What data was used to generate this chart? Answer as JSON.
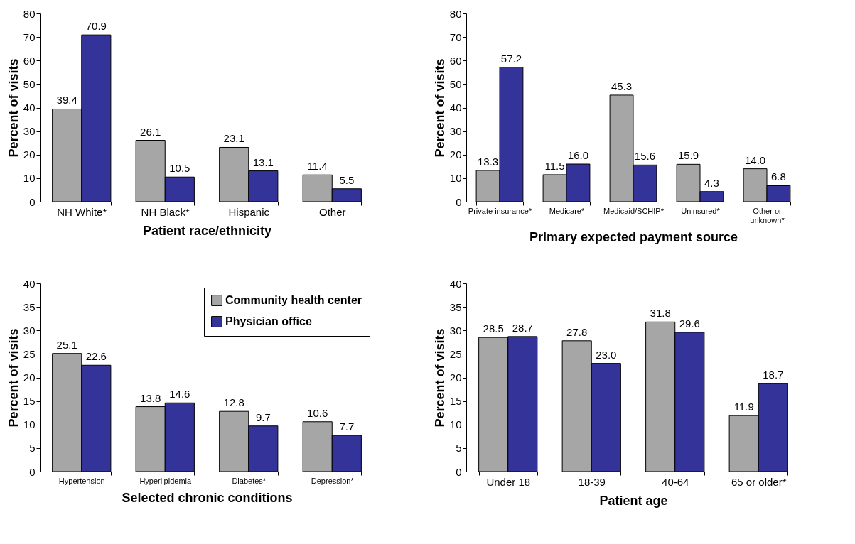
{
  "chart_data": [
    {
      "type": "bar",
      "xlabel": "Patient race/ethnicity",
      "ylabel": "Percent of visits",
      "categories": [
        "NH White*",
        "NH Black*",
        "Hispanic",
        "Other"
      ],
      "series": [
        {
          "color": "#a6a6a6",
          "values": [
            39.4,
            26.1,
            23.1,
            11.4
          ],
          "value_labels": [
            "39.4",
            "26.1",
            "23.1",
            "11.4"
          ]
        },
        {
          "color": "#333399",
          "values": [
            70.9,
            10.5,
            13.1,
            5.5
          ],
          "value_labels": [
            "70.9",
            "10.5",
            "13.1",
            "5.5"
          ]
        }
      ],
      "ylim": [
        0,
        80
      ],
      "yticks": [
        0,
        10,
        20,
        30,
        40,
        50,
        60,
        70,
        80
      ]
    },
    {
      "type": "bar",
      "xlabel": "Primary expected payment source",
      "ylabel": "Percent of visits",
      "categories": [
        "Private insurance*",
        "Medicare*",
        "Medicaid/SCHIP*",
        "Uninsured*",
        "Other or unknown*"
      ],
      "series": [
        {
          "color": "#a6a6a6",
          "values": [
            13.3,
            11.5,
            45.3,
            15.9,
            14.0
          ],
          "value_labels": [
            "13.3",
            "11.5",
            "45.3",
            "15.9",
            "14.0"
          ]
        },
        {
          "color": "#333399",
          "values": [
            57.2,
            16.0,
            15.6,
            4.3,
            6.8
          ],
          "value_labels": [
            "57.2",
            "16.0",
            "15.6",
            "4.3",
            "6.8"
          ]
        }
      ],
      "ylim": [
        0,
        80
      ],
      "yticks": [
        0,
        10,
        20,
        30,
        40,
        50,
        60,
        70,
        80
      ]
    },
    {
      "type": "bar",
      "xlabel": "Selected chronic conditions",
      "ylabel": "Percent of visits",
      "categories": [
        "Hypertension",
        "Hyperlipidemia",
        "Diabetes*",
        "Depression*"
      ],
      "series": [
        {
          "name": "Community health center",
          "color": "#a6a6a6",
          "values": [
            25.1,
            13.8,
            12.8,
            10.6
          ],
          "value_labels": [
            "25.1",
            "13.8",
            "12.8",
            "10.6"
          ]
        },
        {
          "name": "Physician office",
          "color": "#333399",
          "values": [
            22.6,
            14.6,
            9.7,
            7.7
          ],
          "value_labels": [
            "22.6",
            "14.6",
            "9.7",
            "7.7"
          ]
        }
      ],
      "ylim": [
        0,
        40
      ],
      "yticks": [
        0,
        5,
        10,
        15,
        20,
        25,
        30,
        35,
        40
      ],
      "legend": "top right"
    },
    {
      "type": "bar",
      "xlabel": "Patient age",
      "ylabel": "Percent of visits",
      "categories": [
        "Under 18",
        "18-39",
        "40-64",
        "65 or older*"
      ],
      "series": [
        {
          "color": "#a6a6a6",
          "values": [
            28.5,
            27.8,
            31.8,
            11.9
          ],
          "value_labels": [
            "28.5",
            "27.8",
            "31.8",
            "11.9"
          ]
        },
        {
          "color": "#333399",
          "values": [
            28.7,
            23.0,
            29.6,
            18.7
          ],
          "value_labels": [
            "28.7",
            "23.0",
            "29.6",
            "18.7"
          ]
        }
      ],
      "ylim": [
        0,
        40
      ],
      "yticks": [
        0,
        5,
        10,
        15,
        20,
        25,
        30,
        35,
        40
      ]
    }
  ]
}
